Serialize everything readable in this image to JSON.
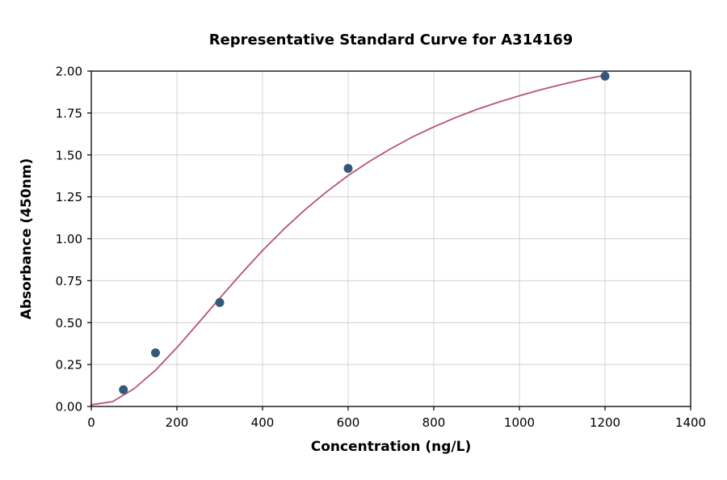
{
  "figure": {
    "background": "#ffffff"
  },
  "chart_data": {
    "type": "scatter",
    "title": "Representative Standard Curve for A314169",
    "xlabel": "Concentration (ng/L)",
    "ylabel": "Absorbance (450nm)",
    "xlim": [
      0,
      1400
    ],
    "ylim": [
      0,
      2.0
    ],
    "xticks": [
      0,
      200,
      400,
      600,
      800,
      1000,
      1200,
      1400
    ],
    "xtick_labels": [
      "0",
      "200",
      "400",
      "600",
      "800",
      "1000",
      "1200",
      "1400"
    ],
    "yticks": [
      0,
      0.25,
      0.5,
      0.75,
      1.0,
      1.25,
      1.5,
      1.75,
      2.0
    ],
    "ytick_labels": [
      "0.00",
      "0.25",
      "0.50",
      "0.75",
      "1.00",
      "1.25",
      "1.50",
      "1.75",
      "2.00"
    ],
    "grid": true,
    "legend": "none",
    "points": {
      "x": [
        75,
        150,
        300,
        600,
        1200
      ],
      "y": [
        0.1,
        0.32,
        0.62,
        1.42,
        1.97
      ]
    },
    "fit_curve": {
      "x": [
        0,
        50,
        100,
        150,
        200,
        250,
        300,
        350,
        400,
        450,
        500,
        550,
        600,
        650,
        700,
        750,
        800,
        850,
        900,
        950,
        1000,
        1050,
        1100,
        1150,
        1200
      ],
      "y": [
        0.01,
        0.029,
        0.106,
        0.216,
        0.351,
        0.497,
        0.646,
        0.791,
        0.93,
        1.058,
        1.175,
        1.281,
        1.377,
        1.462,
        1.538,
        1.607,
        1.667,
        1.722,
        1.771,
        1.814,
        1.853,
        1.889,
        1.921,
        1.95,
        1.976
      ]
    },
    "colors": {
      "curve": "#b85475",
      "points": "#355879",
      "grid": "#d0d0d0",
      "spine": "#000000",
      "text": "#000000"
    }
  }
}
